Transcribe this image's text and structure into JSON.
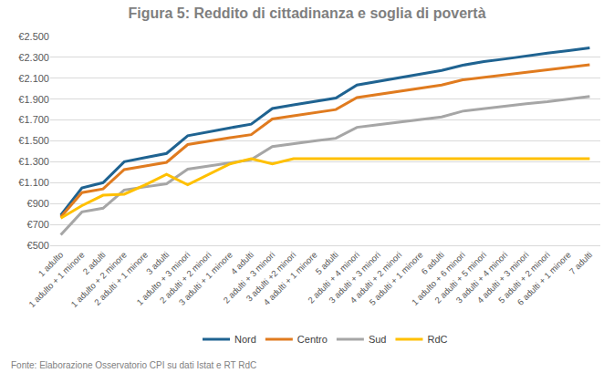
{
  "chart_data": {
    "type": "line",
    "title": "Figura 5: Reddito di cittadinanza e soglia di povertà",
    "annotations": [
      "Fonte: Elaborazione Osservatorio CPI su dati Istat e RT RdC"
    ],
    "categories": [
      "1 adulto",
      "1 adulto + 1 minore",
      "2 adulti",
      "1 adulto + 2 minore",
      "2 adulti + 1 minore",
      "3 adulti",
      "1 adulto + 3 minori",
      "2 adulti + 2 minori",
      "3 adulti + 1 minore",
      "4 adulti",
      "2 adulti + 3 minori",
      "3 adulti +2 minori",
      "4 adulti + 1 minore",
      "5 adulti",
      "2 adulti + 4 minori",
      "3 adulti + 3 minori",
      "4 adulti + 2 minori",
      "5 adulti + 1 minore",
      "6 adulti",
      "1 adulto + 6 minori",
      "2 adulti + 5 minori",
      "3 adulti + 4 minori",
      "4 adulti + 3 minori",
      "5 adulti + 2 minori",
      "6 adulti + 1 minore",
      "7 adulti"
    ],
    "series": [
      {
        "name": "Nord",
        "color": "#1f6391",
        "values": [
          790,
          1050,
          1100,
          1300,
          1340,
          1380,
          1550,
          1590,
          1625,
          1660,
          1810,
          1845,
          1875,
          1910,
          2035,
          2070,
          2105,
          2140,
          2175,
          2225,
          2260,
          2285,
          2315,
          2340,
          2365,
          2390
        ]
      },
      {
        "name": "Centro",
        "color": "#e07b1f",
        "values": [
          770,
          1005,
          1040,
          1225,
          1260,
          1295,
          1465,
          1500,
          1530,
          1560,
          1710,
          1740,
          1770,
          1800,
          1915,
          1945,
          1975,
          2005,
          2035,
          2085,
          2110,
          2135,
          2160,
          2185,
          2210,
          2230
        ]
      },
      {
        "name": "Sud",
        "color": "#a6a6a6",
        "values": [
          600,
          820,
          855,
          1030,
          1060,
          1090,
          1230,
          1260,
          1290,
          1320,
          1445,
          1475,
          1500,
          1525,
          1630,
          1655,
          1680,
          1705,
          1730,
          1785,
          1810,
          1830,
          1855,
          1875,
          1900,
          1925
        ]
      },
      {
        "name": "RdC",
        "color": "#ffc000",
        "values": [
          760,
          880,
          980,
          990,
          1080,
          1180,
          1080,
          1180,
          1280,
          1330,
          1280,
          1330,
          1330,
          1330,
          1330,
          1330,
          1330,
          1330,
          1330,
          1330,
          1330,
          1330,
          1330,
          1330,
          1330,
          1330
        ]
      }
    ],
    "ylim": [
      500,
      2500
    ],
    "yticks": [
      {
        "value": 500,
        "label": "€500"
      },
      {
        "value": 700,
        "label": "€700"
      },
      {
        "value": 900,
        "label": "€900"
      },
      {
        "value": 1100,
        "label": "€1.100"
      },
      {
        "value": 1300,
        "label": "€1.300"
      },
      {
        "value": 1500,
        "label": "€1.500"
      },
      {
        "value": 1700,
        "label": "€1.700"
      },
      {
        "value": 1900,
        "label": "€1.900"
      },
      {
        "value": 2100,
        "label": "€2.100"
      },
      {
        "value": 2300,
        "label": "€2.300"
      },
      {
        "value": 2500,
        "label": "€2.500"
      }
    ],
    "grid": true,
    "legend": "bottom"
  }
}
